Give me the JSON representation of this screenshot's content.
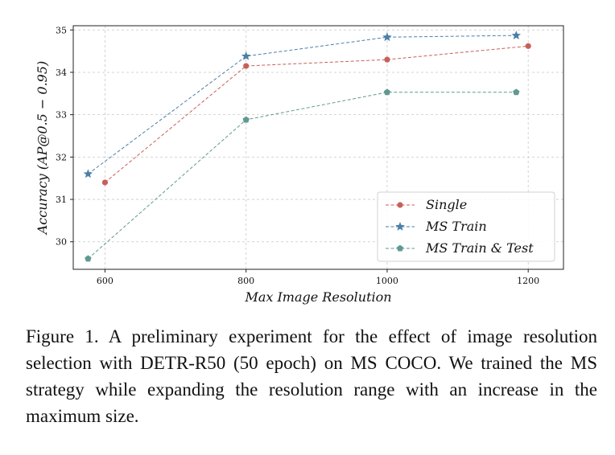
{
  "chart_data": {
    "type": "line",
    "xlabel": "Max Image Resolution",
    "ylabel": "Accuracy (AP@0.5 − 0.95)",
    "xlim": [
      555,
      1250
    ],
    "ylim": [
      29.35,
      35.1
    ],
    "xticks": [
      600,
      800,
      1000,
      1200
    ],
    "yticks": [
      30,
      31,
      32,
      33,
      34,
      35
    ],
    "grid": true,
    "legend_position": "lower-right",
    "series": [
      {
        "name": "Single",
        "color": "#c8605a",
        "marker": "circle",
        "x": [
          600,
          800,
          1000,
          1200
        ],
        "y": [
          31.4,
          34.15,
          34.3,
          34.62
        ]
      },
      {
        "name": "MS Train",
        "color": "#4a7fa8",
        "marker": "star",
        "x": [
          576,
          800,
          1000,
          1183
        ],
        "y": [
          31.6,
          34.38,
          34.83,
          34.87
        ]
      },
      {
        "name": "MS Train & Test",
        "color": "#5f9a92",
        "marker": "pentagon",
        "x": [
          576,
          800,
          1000,
          1183
        ],
        "y": [
          29.6,
          32.88,
          33.53,
          33.53
        ]
      }
    ]
  },
  "caption": "Figure 1.  A preliminary experiment for the effect of image resolution selection with DETR-R50 (50 epoch) on MS COCO. We trained the MS strategy while expanding the resolution range with an increase in the maximum size."
}
